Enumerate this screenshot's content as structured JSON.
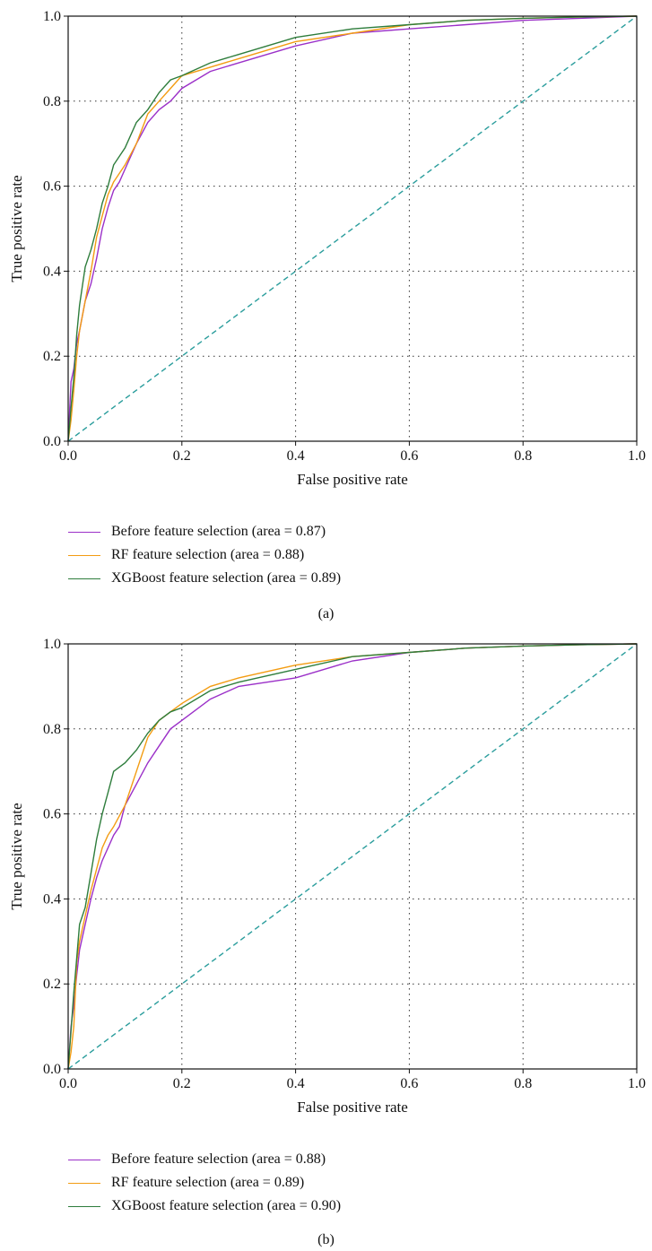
{
  "colors": {
    "purple": "#9b30c8",
    "orange": "#f39c12",
    "green": "#2e7d3c",
    "diagonal": "#2a9d9c"
  },
  "chart_data": [
    {
      "type": "line",
      "caption": "(a)",
      "xlabel": "False positive rate",
      "ylabel": "True positive rate",
      "xlim": [
        0,
        1
      ],
      "ylim": [
        0,
        1
      ],
      "xticks": [
        "0.0",
        "0.2",
        "0.4",
        "0.6",
        "0.8",
        "1.0"
      ],
      "yticks": [
        "0.0",
        "0.2",
        "0.4",
        "0.6",
        "0.8",
        "1.0"
      ],
      "grid": "dotted",
      "legend": "below",
      "series": [
        {
          "name": "Before feature selection (area = 0.87)",
          "color": "purple",
          "x": [
            0,
            0.005,
            0.01,
            0.015,
            0.02,
            0.03,
            0.04,
            0.05,
            0.06,
            0.07,
            0.08,
            0.09,
            0.1,
            0.12,
            0.14,
            0.16,
            0.18,
            0.2,
            0.25,
            0.3,
            0.4,
            0.5,
            0.6,
            0.7,
            0.8,
            0.9,
            1.0
          ],
          "y": [
            0,
            0.14,
            0.17,
            0.23,
            0.26,
            0.33,
            0.37,
            0.43,
            0.5,
            0.55,
            0.59,
            0.61,
            0.64,
            0.7,
            0.75,
            0.78,
            0.8,
            0.83,
            0.87,
            0.89,
            0.93,
            0.96,
            0.97,
            0.98,
            0.99,
            0.995,
            1.0
          ]
        },
        {
          "name": "RF feature selection (area = 0.88)",
          "color": "orange",
          "x": [
            0,
            0.005,
            0.01,
            0.015,
            0.02,
            0.03,
            0.04,
            0.05,
            0.06,
            0.07,
            0.08,
            0.1,
            0.12,
            0.14,
            0.16,
            0.18,
            0.2,
            0.25,
            0.3,
            0.4,
            0.5,
            0.6,
            0.7,
            0.8,
            0.9,
            1.0
          ],
          "y": [
            0,
            0.05,
            0.12,
            0.2,
            0.26,
            0.33,
            0.4,
            0.48,
            0.53,
            0.58,
            0.61,
            0.65,
            0.7,
            0.77,
            0.8,
            0.83,
            0.86,
            0.88,
            0.9,
            0.94,
            0.96,
            0.98,
            0.99,
            0.995,
            0.998,
            1.0
          ]
        },
        {
          "name": "XGBoost feature selection (area = 0.89)",
          "color": "green",
          "x": [
            0,
            0.005,
            0.01,
            0.015,
            0.02,
            0.03,
            0.04,
            0.05,
            0.06,
            0.07,
            0.08,
            0.1,
            0.12,
            0.14,
            0.16,
            0.18,
            0.2,
            0.25,
            0.3,
            0.4,
            0.5,
            0.6,
            0.7,
            0.8,
            0.9,
            1.0
          ],
          "y": [
            0,
            0.08,
            0.15,
            0.25,
            0.32,
            0.41,
            0.45,
            0.5,
            0.56,
            0.6,
            0.65,
            0.69,
            0.75,
            0.78,
            0.82,
            0.85,
            0.86,
            0.89,
            0.91,
            0.95,
            0.97,
            0.98,
            0.99,
            0.995,
            0.998,
            1.0
          ]
        },
        {
          "name": "",
          "color": "diagonal",
          "dashed": true,
          "x": [
            0,
            1
          ],
          "y": [
            0,
            1
          ]
        }
      ]
    },
    {
      "type": "line",
      "caption": "(b)",
      "xlabel": "False positive rate",
      "ylabel": "True positive rate",
      "xlim": [
        0,
        1
      ],
      "ylim": [
        0,
        1
      ],
      "xticks": [
        "0.0",
        "0.2",
        "0.4",
        "0.6",
        "0.8",
        "1.0"
      ],
      "yticks": [
        "0.0",
        "0.2",
        "0.4",
        "0.6",
        "0.8",
        "1.0"
      ],
      "grid": "dotted",
      "legend": "below",
      "series": [
        {
          "name": "Before feature selection (area = 0.88)",
          "color": "purple",
          "x": [
            0,
            0.005,
            0.01,
            0.015,
            0.02,
            0.03,
            0.04,
            0.05,
            0.06,
            0.07,
            0.08,
            0.09,
            0.1,
            0.12,
            0.14,
            0.16,
            0.18,
            0.2,
            0.25,
            0.3,
            0.4,
            0.5,
            0.6,
            0.7,
            0.8,
            0.9,
            1.0
          ],
          "y": [
            0,
            0.1,
            0.15,
            0.22,
            0.28,
            0.34,
            0.4,
            0.45,
            0.49,
            0.52,
            0.55,
            0.57,
            0.62,
            0.67,
            0.72,
            0.76,
            0.8,
            0.82,
            0.87,
            0.9,
            0.92,
            0.96,
            0.98,
            0.99,
            0.995,
            0.998,
            1.0
          ]
        },
        {
          "name": "RF feature selection (area = 0.89)",
          "color": "orange",
          "x": [
            0,
            0.005,
            0.01,
            0.015,
            0.02,
            0.03,
            0.04,
            0.05,
            0.06,
            0.07,
            0.08,
            0.1,
            0.12,
            0.14,
            0.16,
            0.18,
            0.2,
            0.25,
            0.3,
            0.4,
            0.5,
            0.6,
            0.7,
            0.8,
            0.9,
            1.0
          ],
          "y": [
            0,
            0.04,
            0.1,
            0.25,
            0.3,
            0.36,
            0.42,
            0.47,
            0.52,
            0.55,
            0.57,
            0.62,
            0.7,
            0.78,
            0.82,
            0.84,
            0.86,
            0.9,
            0.92,
            0.95,
            0.97,
            0.98,
            0.99,
            0.995,
            0.998,
            1.0
          ]
        },
        {
          "name": "XGBoost feature selection (area = 0.90)",
          "color": "green",
          "x": [
            0,
            0.005,
            0.01,
            0.015,
            0.02,
            0.03,
            0.04,
            0.05,
            0.06,
            0.07,
            0.08,
            0.1,
            0.12,
            0.14,
            0.16,
            0.18,
            0.2,
            0.25,
            0.3,
            0.4,
            0.5,
            0.6,
            0.7,
            0.8,
            0.9,
            1.0
          ],
          "y": [
            0,
            0.09,
            0.18,
            0.26,
            0.34,
            0.38,
            0.46,
            0.54,
            0.6,
            0.65,
            0.7,
            0.72,
            0.75,
            0.79,
            0.82,
            0.84,
            0.85,
            0.89,
            0.91,
            0.94,
            0.97,
            0.98,
            0.99,
            0.995,
            0.998,
            1.0
          ]
        },
        {
          "name": "",
          "color": "diagonal",
          "dashed": true,
          "x": [
            0,
            1
          ],
          "y": [
            0,
            1
          ]
        }
      ]
    }
  ]
}
